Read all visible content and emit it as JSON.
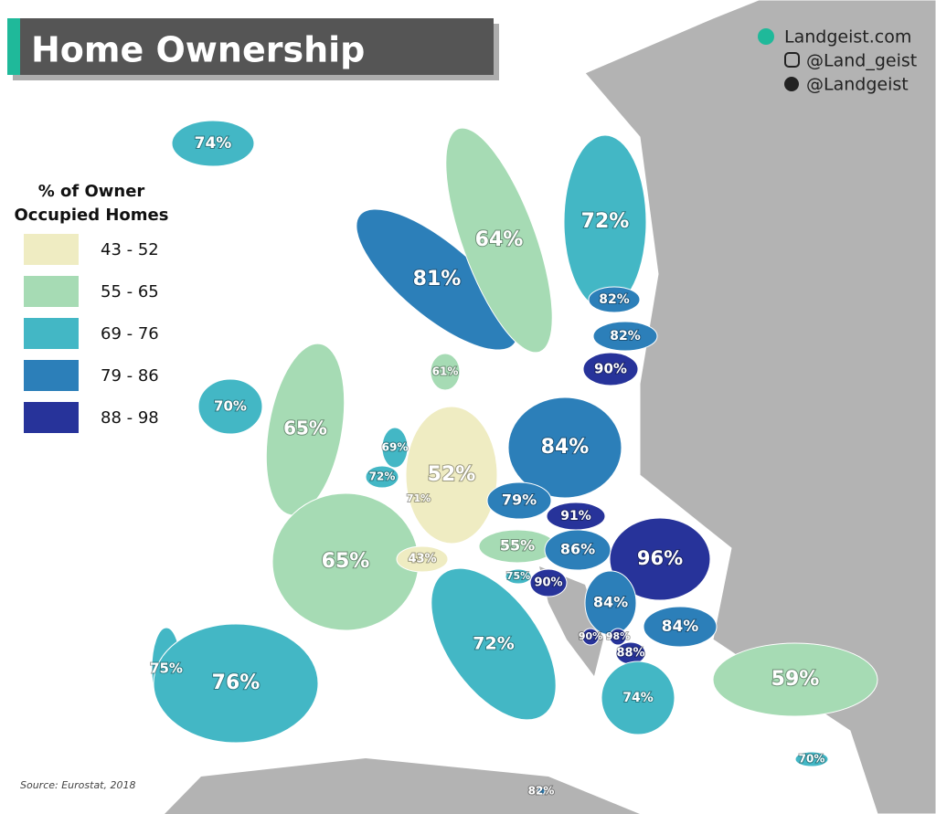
{
  "header": {
    "title": "Home Ownership"
  },
  "social": [
    "Landgeist.com",
    "@Land_geist",
    "@Landgeist"
  ],
  "legend": {
    "title": [
      "% of Owner",
      "Occupied Homes"
    ],
    "items": [
      {
        "label": "43 - 52",
        "color": "#efecc2"
      },
      {
        "label": "55 - 65",
        "color": "#a6dbb4"
      },
      {
        "label": "69 - 76",
        "color": "#43b7c5"
      },
      {
        "label": "79 - 86",
        "color": "#2c7fb9"
      },
      {
        "label": "88 - 98",
        "color": "#27339a"
      }
    ]
  },
  "regions": [
    {
      "label": "74%",
      "color": "#43b7c5"
    },
    {
      "label": "81%",
      "color": "#2c7fb9"
    },
    {
      "label": "64%",
      "color": "#a6dbb4"
    },
    {
      "label": "72%",
      "color": "#43b7c5"
    },
    {
      "label": "82%",
      "color": "#2c7fb9"
    },
    {
      "label": "82%",
      "color": "#2c7fb9"
    },
    {
      "label": "90%",
      "color": "#27339a"
    },
    {
      "label": "61%",
      "color": "#a6dbb4"
    },
    {
      "label": "70%",
      "color": "#43b7c5"
    },
    {
      "label": "65%",
      "color": "#a6dbb4"
    },
    {
      "label": "69%",
      "color": "#43b7c5"
    },
    {
      "label": "72%",
      "color": "#43b7c5"
    },
    {
      "label": "71%",
      "color": "#43b7c5"
    },
    {
      "label": "52%",
      "color": "#efecc2"
    },
    {
      "label": "84%",
      "color": "#2c7fb9"
    },
    {
      "label": "79%",
      "color": "#2c7fb9"
    },
    {
      "label": "91%",
      "color": "#27339a"
    },
    {
      "label": "65%",
      "color": "#a6dbb4"
    },
    {
      "label": "43%",
      "color": "#efecc2"
    },
    {
      "label": "55%",
      "color": "#a6dbb4"
    },
    {
      "label": "86%",
      "color": "#2c7fb9"
    },
    {
      "label": "96%",
      "color": "#27339a"
    },
    {
      "label": "75%",
      "color": "#43b7c5"
    },
    {
      "label": "90%",
      "color": "#27339a"
    },
    {
      "label": "84%",
      "color": "#2c7fb9"
    },
    {
      "label": "84%",
      "color": "#2c7fb9"
    },
    {
      "label": "90%",
      "color": "#27339a"
    },
    {
      "label": "98%",
      "color": "#27339a"
    },
    {
      "label": "88%",
      "color": "#27339a"
    },
    {
      "label": "72%",
      "color": "#43b7c5"
    },
    {
      "label": "75%",
      "color": "#43b7c5"
    },
    {
      "label": "76%",
      "color": "#43b7c5"
    },
    {
      "label": "74%",
      "color": "#43b7c5"
    },
    {
      "label": "59%",
      "color": "#a6dbb4"
    },
    {
      "label": "70%",
      "color": "#43b7c5"
    },
    {
      "label": "82%",
      "color": "#2c7fb9"
    }
  ],
  "source": "Source: Eurostat, 2018"
}
